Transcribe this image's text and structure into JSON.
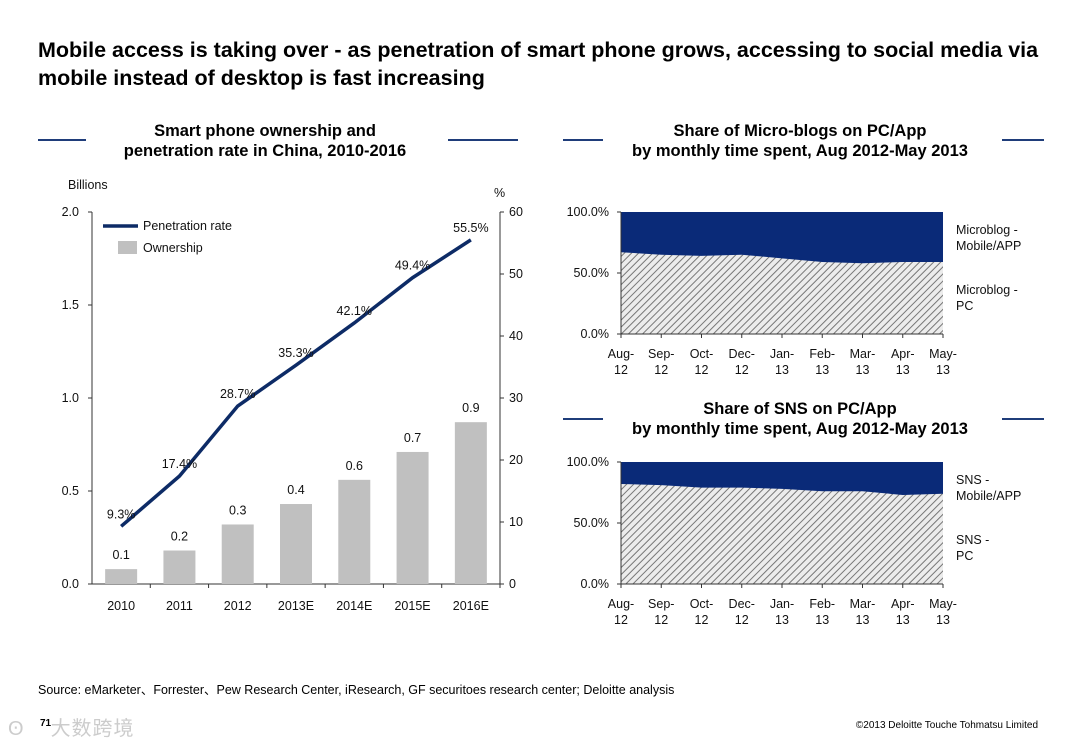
{
  "title": "Mobile access is taking over - as penetration of  smart phone grows,  accessing to social media via mobile instead of desktop is fast increasing",
  "source": "Source: eMarketer、Forrester、Pew Research Center, iResearch, GF securitoes research center; Deloitte analysis",
  "page_number": "71",
  "copyright": "©2013 Deloitte Touche Tohmatsu Limited",
  "watermark": "大数跨境",
  "colors": {
    "navy": "#0a2a78",
    "bar": "#c0c0c0",
    "line": "#0d2b66"
  },
  "chart_data": [
    {
      "type": "bar",
      "title": "Smart phone ownership and penetration rate in China, 2010-2016",
      "title_lines": [
        "Smart phone ownership and",
        "penetration rate in China, 2010-2016"
      ],
      "categories": [
        "2010",
        "2011",
        "2012",
        "2013E",
        "2014E",
        "2015E",
        "2016E"
      ],
      "ylabel": "Billions",
      "y2label": "%",
      "ylim": [
        0,
        2.0
      ],
      "y2lim": [
        0,
        60
      ],
      "yticks": [
        "0.0",
        "0.5",
        "1.0",
        "1.5",
        "2.0"
      ],
      "y2ticks": [
        "0",
        "10",
        "20",
        "30",
        "40",
        "50",
        "60"
      ],
      "legend": [
        "Penetration rate",
        "Ownership"
      ],
      "legend_position": "top-left",
      "series": [
        {
          "name": "Ownership",
          "kind": "bar",
          "values": [
            0.08,
            0.18,
            0.32,
            0.43,
            0.56,
            0.71,
            0.87
          ],
          "labels": [
            "0.1",
            "0.2",
            "0.3",
            "0.4",
            "0.6",
            "0.7",
            "0.9"
          ]
        },
        {
          "name": "Penetration rate",
          "kind": "line",
          "axis": "right",
          "values": [
            9.3,
            17.4,
            28.7,
            35.3,
            42.1,
            49.4,
            55.5
          ],
          "labels": [
            "9.3%",
            "17.4%",
            "28.7%",
            "35.3%",
            "42.1%",
            "49.4%",
            "55.5%"
          ]
        }
      ]
    },
    {
      "type": "area",
      "title": "Share of Micro-blogs on PC/App by monthly time spent, Aug 2012-May 2013",
      "title_lines": [
        "Share of Micro-blogs on PC/App",
        "by monthly time spent, Aug 2012-May 2013"
      ],
      "categories": [
        [
          "Aug-",
          "12"
        ],
        [
          "Sep-",
          "12"
        ],
        [
          "Oct-",
          "12"
        ],
        [
          "Dec-",
          "12"
        ],
        [
          "Jan-",
          "13"
        ],
        [
          "Feb-",
          "13"
        ],
        [
          "Mar-",
          "13"
        ],
        [
          "Apr-",
          "13"
        ],
        [
          "May-",
          "13"
        ]
      ],
      "ylim": [
        0,
        100
      ],
      "yticks": [
        "0.0%",
        "50.0%",
        "100.0%"
      ],
      "series": [
        {
          "name": "Microblog - PC",
          "label_lines": [
            "Microblog -",
            "PC"
          ],
          "values": [
            67,
            65,
            64,
            65,
            62,
            59,
            58,
            59,
            59
          ]
        },
        {
          "name": "Microblog - Mobile/APP",
          "label_lines": [
            "Microblog -",
            "Mobile/APP"
          ],
          "values": [
            33,
            35,
            36,
            35,
            38,
            41,
            42,
            41,
            41
          ]
        }
      ]
    },
    {
      "type": "area",
      "title": "Share of SNS on PC/App by monthly time spent, Aug 2012-May 2013",
      "title_lines": [
        "Share of SNS on PC/App",
        "by monthly time spent, Aug 2012-May 2013"
      ],
      "categories": [
        [
          "Aug-",
          "12"
        ],
        [
          "Sep-",
          "12"
        ],
        [
          "Oct-",
          "12"
        ],
        [
          "Dec-",
          "12"
        ],
        [
          "Jan-",
          "13"
        ],
        [
          "Feb-",
          "13"
        ],
        [
          "Mar-",
          "13"
        ],
        [
          "Apr-",
          "13"
        ],
        [
          "May-",
          "13"
        ]
      ],
      "ylim": [
        0,
        100
      ],
      "yticks": [
        "0.0%",
        "50.0%",
        "100.0%"
      ],
      "series": [
        {
          "name": "SNS - PC",
          "label_lines": [
            "SNS -",
            "PC"
          ],
          "values": [
            82,
            81,
            79,
            79,
            78,
            76,
            76,
            73,
            74
          ]
        },
        {
          "name": "SNS - Mobile/APP",
          "label_lines": [
            "SNS -",
            "Mobile/APP"
          ],
          "values": [
            18,
            19,
            21,
            21,
            22,
            24,
            24,
            27,
            26
          ]
        }
      ]
    }
  ]
}
